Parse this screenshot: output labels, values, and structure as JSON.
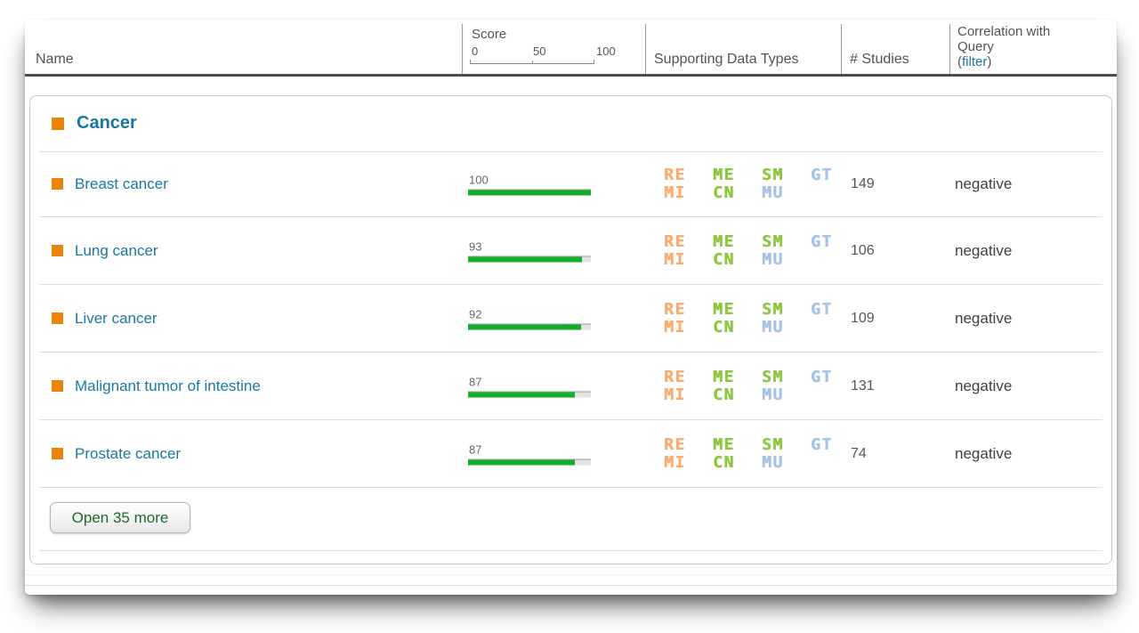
{
  "header": {
    "name_label": "Name",
    "score": {
      "label": "Score",
      "tick0": "0",
      "tick50": "50",
      "tick100": "100"
    },
    "data_types_label": "Supporting Data Types",
    "studies_label": "# Studies",
    "correlation": {
      "line1": "Correlation with",
      "line2": "Query",
      "open_paren": "(",
      "filter_link": "filter",
      "close_paren": ")"
    }
  },
  "group": {
    "label": "Cancer"
  },
  "rows": [
    {
      "name": "Breast cancer",
      "score": 100,
      "studies": "149",
      "correlation": "negative"
    },
    {
      "name": "Lung cancer",
      "score": 93,
      "studies": "106",
      "correlation": "negative"
    },
    {
      "name": "Liver cancer",
      "score": 92,
      "studies": "109",
      "correlation": "negative"
    },
    {
      "name": "Malignant tumor of intestine",
      "score": 87,
      "studies": "131",
      "correlation": "negative"
    },
    {
      "name": "Prostate cancer",
      "score": 87,
      "studies": "74",
      "correlation": "negative"
    }
  ],
  "data_types": {
    "row1": [
      {
        "code": "RE",
        "color": "#f9ad72"
      },
      {
        "code": "ME",
        "color": "#8cc63f"
      },
      {
        "code": "SM",
        "color": "#8cc63f"
      },
      {
        "code": "GT",
        "color": "#a6c3e6"
      }
    ],
    "row2": [
      {
        "code": "MI",
        "color": "#f9ad72"
      },
      {
        "code": "CN",
        "color": "#8cc63f"
      },
      {
        "code": "MU",
        "color": "#a6c3e6"
      }
    ]
  },
  "footer": {
    "open_more_label": "Open 35 more"
  },
  "colors": {
    "link_teal": "#1878a0",
    "bullet_orange": "#e8830c",
    "score_green": "#12ae2b",
    "score_track": "#e2e2e2"
  }
}
